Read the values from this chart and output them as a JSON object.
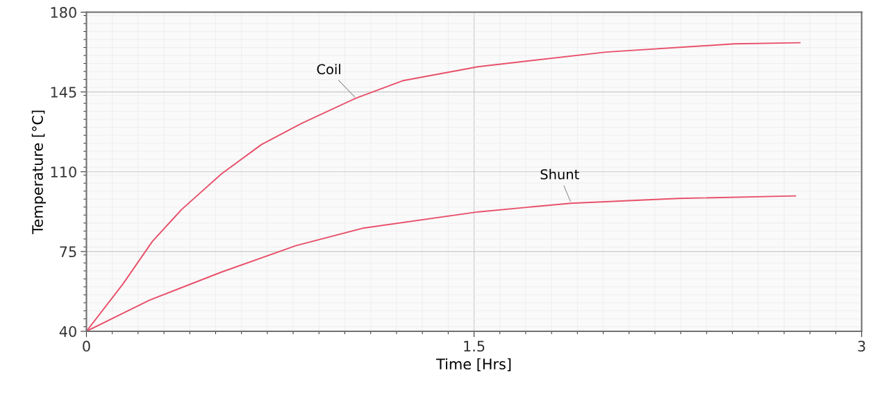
{
  "chart_data": {
    "type": "line",
    "xlabel": "Time [Hrs]",
    "ylabel": "Temperature [°C]",
    "xlim": [
      0,
      3
    ],
    "xticks": [
      0,
      1.5,
      3
    ],
    "ylim": [
      40,
      180
    ],
    "yticks": [
      40,
      75,
      110,
      145,
      180
    ],
    "grid": true,
    "marker": "none",
    "line_style": "solid",
    "series": [
      {
        "name": "Coil",
        "color": "#e8506a",
        "x": [
          0,
          0.141,
          0.255,
          0.368,
          0.523,
          0.677,
          0.832,
          1.043,
          1.223,
          1.516,
          2.011,
          2.507,
          2.761
        ],
        "values": [
          40,
          60.7,
          79.4,
          93.4,
          109.1,
          121.9,
          131.2,
          142.3,
          149.9,
          156.1,
          162.5,
          166.1,
          166.6
        ]
      },
      {
        "name": "Shunt",
        "color": "#e8506a",
        "x": [
          0,
          0.245,
          0.523,
          0.811,
          1.069,
          1.516,
          1.876,
          2.293,
          2.744
        ],
        "values": [
          40,
          53.7,
          66.0,
          77.6,
          85.2,
          92.4,
          96.2,
          98.3,
          99.4
        ]
      }
    ]
  }
}
